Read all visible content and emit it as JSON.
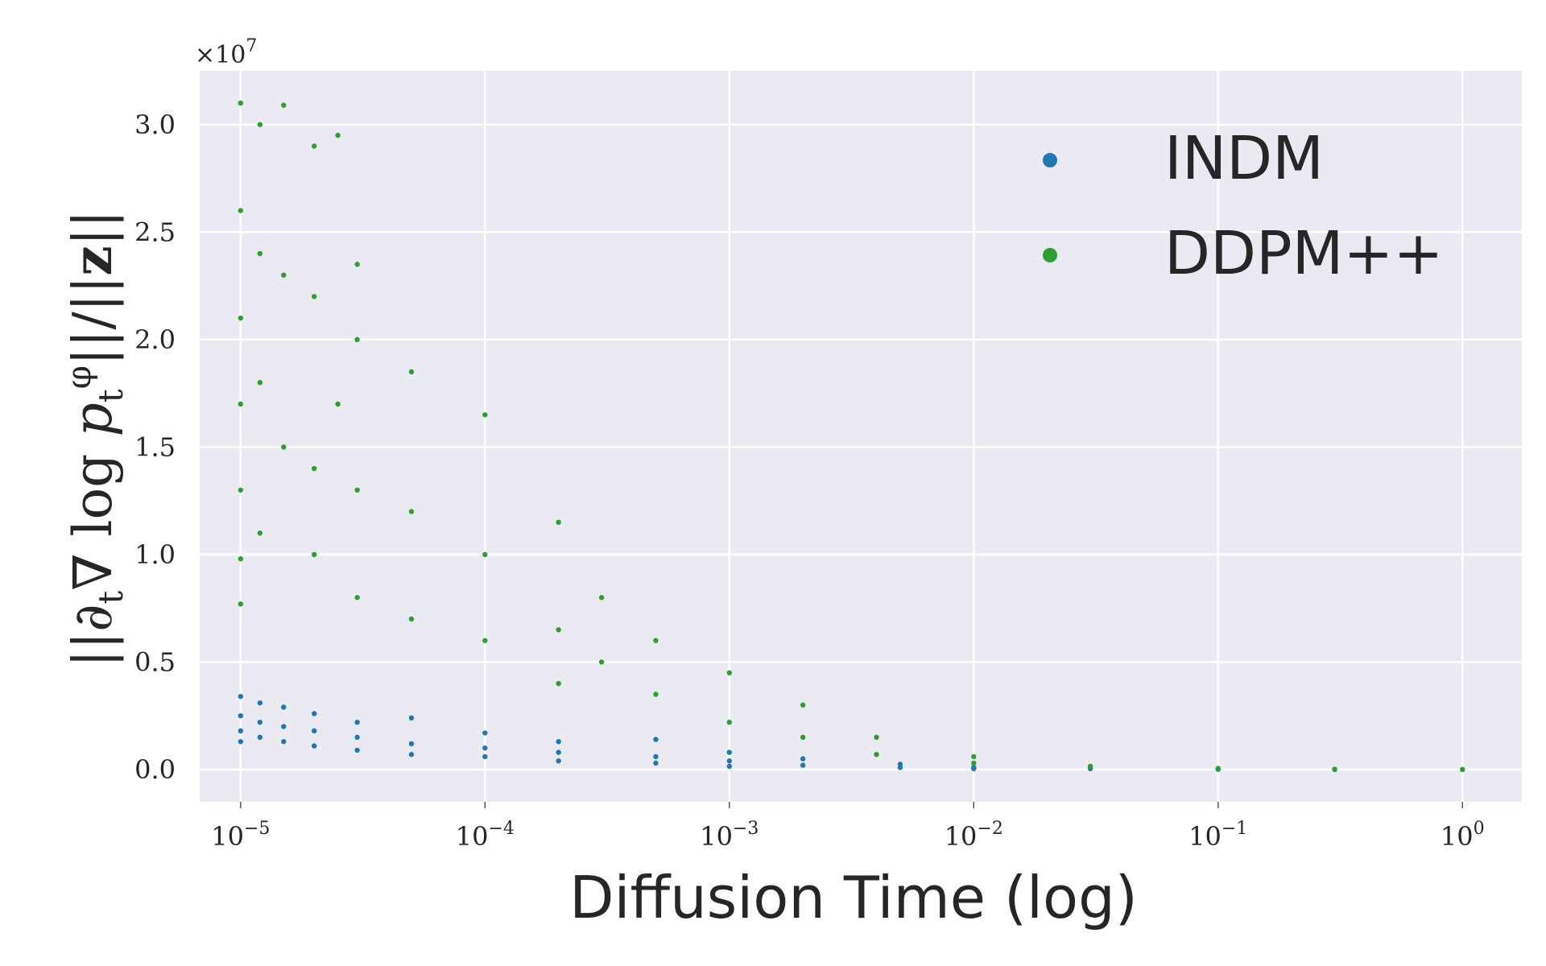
{
  "chart_data": {
    "type": "scatter",
    "xlabel": "Diffusion Time (log)",
    "ylabel": "||∂t∇ log pt^φ||/||z||",
    "ylabel_parts": {
      "lhs": "||∂",
      "sub_t1": "t",
      "mid": "∇ log ",
      "p": "p",
      "sub_t2": "t",
      "sup_phi": "φ",
      "rhs": "||/||",
      "z": "z",
      "end": "||"
    },
    "y_multiplier": {
      "base": "×10",
      "exp": "7"
    },
    "x_scale": "log",
    "x_range": [
      6.8e-06,
      1.75
    ],
    "y_range": [
      -1500000,
      32500000
    ],
    "x_ticks": [
      {
        "value": 1e-05,
        "base": "10",
        "exp": "−5"
      },
      {
        "value": 0.0001,
        "base": "10",
        "exp": "−4"
      },
      {
        "value": 0.001,
        "base": "10",
        "exp": "−3"
      },
      {
        "value": 0.01,
        "base": "10",
        "exp": "−2"
      },
      {
        "value": 0.1,
        "base": "10",
        "exp": "−1"
      },
      {
        "value": 1,
        "base": "10",
        "exp": "0"
      }
    ],
    "y_ticks": [
      {
        "value": 0,
        "label": "0.0"
      },
      {
        "value": 5000000,
        "label": "0.5"
      },
      {
        "value": 10000000,
        "label": "1.0"
      },
      {
        "value": 15000000,
        "label": "1.5"
      },
      {
        "value": 20000000,
        "label": "2.0"
      },
      {
        "value": 25000000,
        "label": "2.5"
      },
      {
        "value": 30000000,
        "label": "3.0"
      }
    ],
    "grid": true,
    "legend_position": "top-right",
    "background_color": "#eaeaf2",
    "series": [
      {
        "name": "INDM",
        "color": "#1f77b4",
        "points": [
          [
            1e-05,
            3400000
          ],
          [
            1e-05,
            2500000
          ],
          [
            1e-05,
            1800000
          ],
          [
            1e-05,
            1300000
          ],
          [
            1.2e-05,
            3100000
          ],
          [
            1.2e-05,
            2200000
          ],
          [
            1.2e-05,
            1500000
          ],
          [
            1.5e-05,
            2900000
          ],
          [
            1.5e-05,
            2000000
          ],
          [
            1.5e-05,
            1300000
          ],
          [
            2e-05,
            2600000
          ],
          [
            2e-05,
            1800000
          ],
          [
            2e-05,
            1100000
          ],
          [
            3e-05,
            2200000
          ],
          [
            3e-05,
            1500000
          ],
          [
            3e-05,
            900000
          ],
          [
            5e-05,
            2400000
          ],
          [
            5e-05,
            1200000
          ],
          [
            5e-05,
            700000
          ],
          [
            0.0001,
            1700000
          ],
          [
            0.0001,
            1000000
          ],
          [
            0.0001,
            600000
          ],
          [
            0.0002,
            1300000
          ],
          [
            0.0002,
            800000
          ],
          [
            0.0002,
            400000
          ],
          [
            0.0005,
            1400000
          ],
          [
            0.0005,
            600000
          ],
          [
            0.0005,
            300000
          ],
          [
            0.001,
            800000
          ],
          [
            0.001,
            400000
          ],
          [
            0.001,
            150000
          ],
          [
            0.002,
            500000
          ],
          [
            0.002,
            200000
          ],
          [
            0.005,
            250000
          ],
          [
            0.005,
            90000
          ],
          [
            0.01,
            100000
          ],
          [
            0.01,
            40000
          ],
          [
            0.03,
            40000
          ],
          [
            0.1,
            10000
          ],
          [
            0.3,
            5000
          ],
          [
            1,
            2000
          ]
        ]
      },
      {
        "name": "DDPM++",
        "color": "#2ca02c",
        "points": [
          [
            1e-05,
            31000000
          ],
          [
            1e-05,
            26000000
          ],
          [
            1e-05,
            21000000
          ],
          [
            1e-05,
            17000000
          ],
          [
            1e-05,
            13000000
          ],
          [
            1e-05,
            9800000
          ],
          [
            1e-05,
            7700000
          ],
          [
            1.2e-05,
            30000000
          ],
          [
            1.2e-05,
            24000000
          ],
          [
            1.2e-05,
            18000000
          ],
          [
            1.2e-05,
            11000000
          ],
          [
            1.5e-05,
            30900000
          ],
          [
            1.5e-05,
            23000000
          ],
          [
            1.5e-05,
            15000000
          ],
          [
            2e-05,
            29000000
          ],
          [
            2e-05,
            22000000
          ],
          [
            2e-05,
            14000000
          ],
          [
            2e-05,
            10000000
          ],
          [
            2.5e-05,
            29500000
          ],
          [
            2.5e-05,
            17000000
          ],
          [
            3e-05,
            23500000
          ],
          [
            3e-05,
            20000000
          ],
          [
            3e-05,
            13000000
          ],
          [
            3e-05,
            8000000
          ],
          [
            5e-05,
            18500000
          ],
          [
            5e-05,
            12000000
          ],
          [
            5e-05,
            7000000
          ],
          [
            0.0001,
            16500000
          ],
          [
            0.0001,
            10000000
          ],
          [
            0.0001,
            6000000
          ],
          [
            0.0002,
            11500000
          ],
          [
            0.0002,
            6500000
          ],
          [
            0.0002,
            4000000
          ],
          [
            0.0003,
            8000000
          ],
          [
            0.0003,
            5000000
          ],
          [
            0.0005,
            6000000
          ],
          [
            0.0005,
            3500000
          ],
          [
            0.001,
            4500000
          ],
          [
            0.001,
            2200000
          ],
          [
            0.002,
            3000000
          ],
          [
            0.002,
            1500000
          ],
          [
            0.004,
            1500000
          ],
          [
            0.004,
            700000
          ],
          [
            0.01,
            600000
          ],
          [
            0.01,
            300000
          ],
          [
            0.03,
            150000
          ],
          [
            0.1,
            50000
          ],
          [
            0.3,
            15000
          ],
          [
            1,
            5000
          ]
        ]
      }
    ]
  }
}
